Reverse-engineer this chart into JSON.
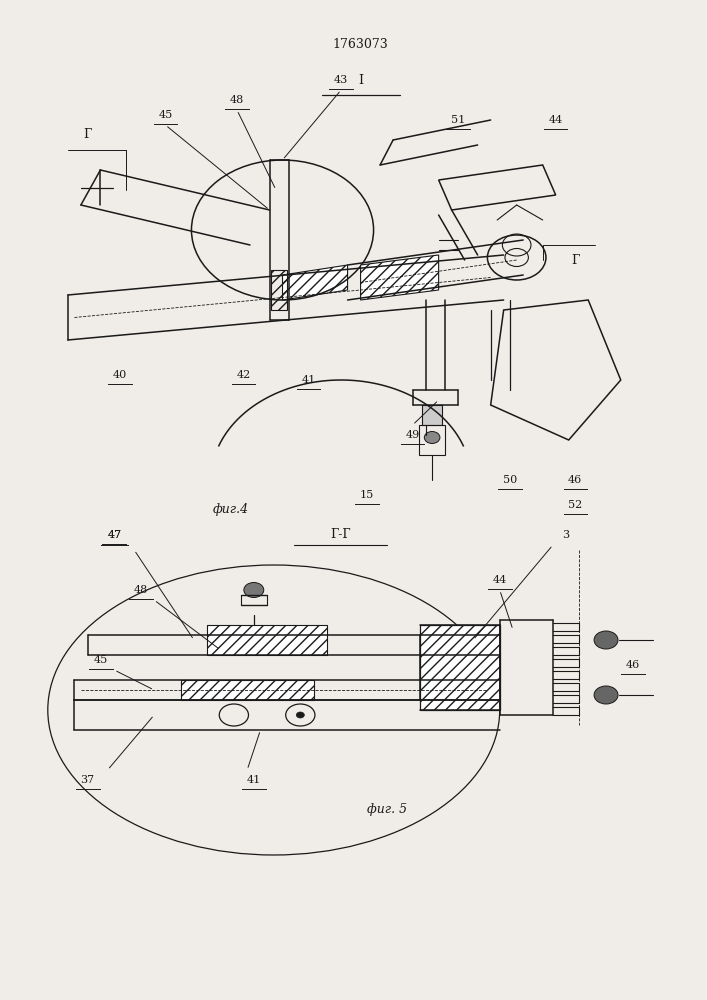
{
  "title": "1763073",
  "fig4_label": "фиг.4",
  "fig5_label": "фиг. 5",
  "section_I": "I",
  "section_GG": "Г-Г",
  "bg_color": "#f0ede8",
  "line_color": "#1a1a1a",
  "label_color": "#1a1a1a"
}
